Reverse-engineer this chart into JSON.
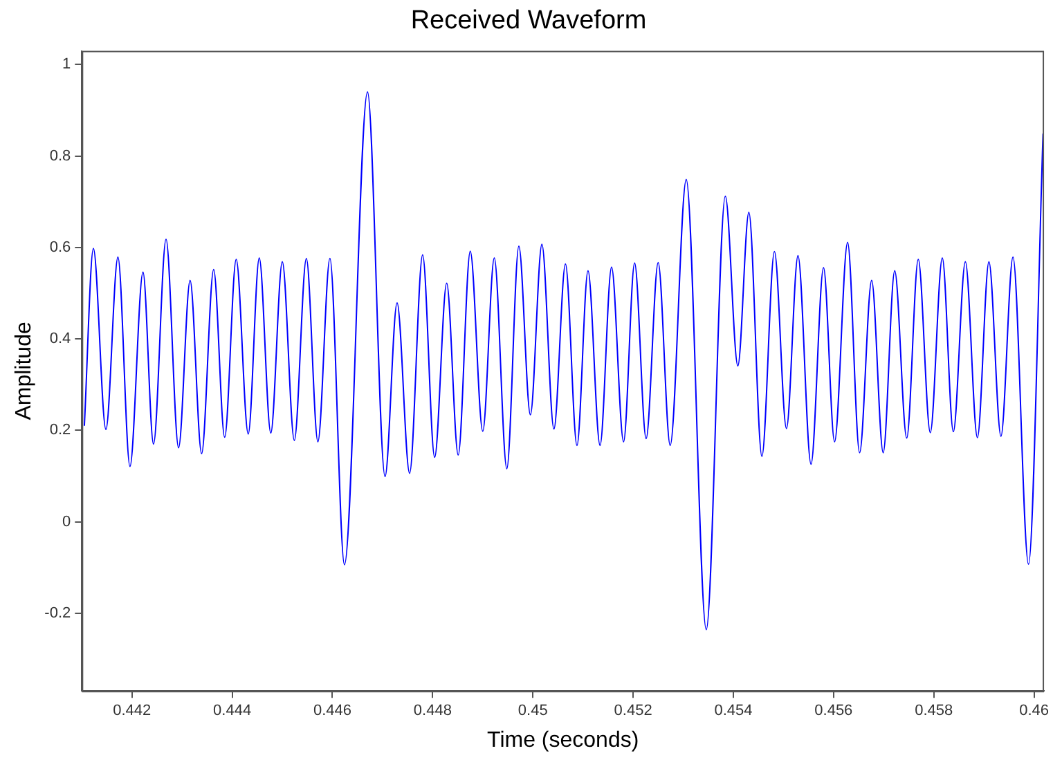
{
  "chart_data": {
    "type": "line",
    "title": "Received Waveform",
    "xlabel": "Time (seconds)",
    "ylabel": "Amplitude",
    "xlim": [
      0.441,
      0.4602
    ],
    "ylim": [
      -0.37,
      1.03
    ],
    "xticks": [
      0.442,
      0.444,
      0.446,
      0.448,
      0.45,
      0.452,
      0.454,
      0.456,
      0.458,
      0.46
    ],
    "yticks": [
      -0.2,
      0,
      0.2,
      0.4,
      0.6,
      0.8,
      1
    ],
    "grid": false,
    "legend": false,
    "marker": "none",
    "line_style": "solid",
    "series": [
      {
        "color": "#0000ff",
        "x": [
          0.44105,
          0.44123,
          0.44148,
          0.44172,
          0.44196,
          0.44222,
          0.44243,
          0.44268,
          0.44293,
          0.44316,
          0.44339,
          0.44363,
          0.44385,
          0.44408,
          0.44432,
          0.44454,
          0.44477,
          0.445,
          0.44524,
          0.44548,
          0.44571,
          0.44595,
          0.44624,
          0.4467,
          0.44705,
          0.44729,
          0.44754,
          0.4478,
          0.44804,
          0.44828,
          0.44851,
          0.44875,
          0.449,
          0.44923,
          0.44948,
          0.44972,
          0.44995,
          0.45018,
          0.45042,
          0.45065,
          0.45088,
          0.4511,
          0.45134,
          0.45157,
          0.45181,
          0.45203,
          0.45226,
          0.4525,
          0.45274,
          0.45306,
          0.45346,
          0.45384,
          0.45409,
          0.45431,
          0.45457,
          0.45482,
          0.45506,
          0.45529,
          0.45555,
          0.4558,
          0.45602,
          0.45628,
          0.45652,
          0.45676,
          0.45699,
          0.45722,
          0.45746,
          0.45769,
          0.45793,
          0.45817,
          0.45839,
          0.45863,
          0.45887,
          0.4591,
          0.45934,
          0.45958,
          0.45989,
          0.46018
        ],
        "values": [
          0.21,
          0.598,
          0.202,
          0.579,
          0.121,
          0.546,
          0.17,
          0.618,
          0.162,
          0.528,
          0.149,
          0.552,
          0.185,
          0.574,
          0.192,
          0.577,
          0.194,
          0.569,
          0.178,
          0.576,
          0.175,
          0.576,
          -0.094,
          0.94,
          0.099,
          0.479,
          0.106,
          0.584,
          0.141,
          0.522,
          0.146,
          0.592,
          0.198,
          0.577,
          0.116,
          0.603,
          0.234,
          0.607,
          0.203,
          0.564,
          0.167,
          0.549,
          0.167,
          0.557,
          0.175,
          0.566,
          0.182,
          0.567,
          0.167,
          0.749,
          -0.236,
          0.712,
          0.341,
          0.677,
          0.143,
          0.591,
          0.204,
          0.582,
          0.126,
          0.556,
          0.175,
          0.611,
          0.151,
          0.528,
          0.151,
          0.549,
          0.183,
          0.574,
          0.195,
          0.577,
          0.197,
          0.569,
          0.184,
          0.569,
          0.187,
          0.579,
          -0.093,
          0.849
        ]
      }
    ]
  }
}
